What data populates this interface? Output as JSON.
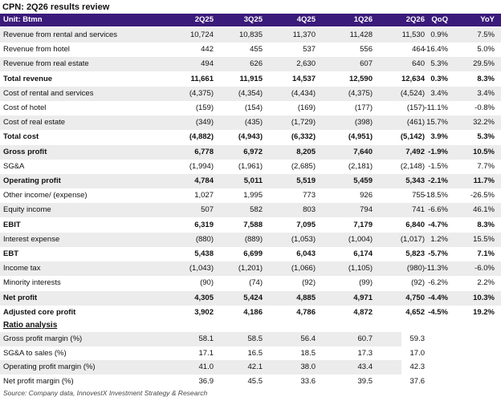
{
  "title": "CPN: 2Q26 results review",
  "header": {
    "unit": "Unit: Btmn",
    "columns": [
      "2Q25",
      "3Q25",
      "4Q25",
      "1Q26",
      "2Q26",
      "QoQ",
      "YoY"
    ]
  },
  "rows": [
    {
      "label": "Revenue from rental and services",
      "values": [
        "10,724",
        "10,835",
        "11,370",
        "11,428",
        "11,530",
        "0.9%",
        "7.5%"
      ],
      "bold": false
    },
    {
      "label": "Revenue from hotel",
      "values": [
        "442",
        "455",
        "537",
        "556",
        "464",
        "-16.4%",
        "5.0%"
      ],
      "bold": false
    },
    {
      "label": "Revenue from real estate",
      "values": [
        "494",
        "626",
        "2,630",
        "607",
        "640",
        "5.3%",
        "29.5%"
      ],
      "bold": false
    },
    {
      "label": "Total revenue",
      "values": [
        "11,661",
        "11,915",
        "14,537",
        "12,590",
        "12,634",
        "0.3%",
        "8.3%"
      ],
      "bold": true
    },
    {
      "label": "Cost of rental and services",
      "values": [
        "(4,375)",
        "(4,354)",
        "(4,434)",
        "(4,375)",
        "(4,524)",
        "3.4%",
        "3.4%"
      ],
      "bold": false
    },
    {
      "label": "Cost of hotel",
      "values": [
        "(159)",
        "(154)",
        "(169)",
        "(177)",
        "(157)",
        "-11.1%",
        "-0.8%"
      ],
      "bold": false
    },
    {
      "label": "Cost of real estate",
      "values": [
        "(349)",
        "(435)",
        "(1,729)",
        "(398)",
        "(461)",
        "15.7%",
        "32.2%"
      ],
      "bold": false
    },
    {
      "label": "Total cost",
      "values": [
        "(4,882)",
        "(4,943)",
        "(6,332)",
        "(4,951)",
        "(5,142)",
        "3.9%",
        "5.3%"
      ],
      "bold": true
    },
    {
      "label": "Gross profit",
      "values": [
        "6,778",
        "6,972",
        "8,205",
        "7,640",
        "7,492",
        "-1.9%",
        "10.5%"
      ],
      "bold": true
    },
    {
      "label": "SG&A",
      "values": [
        "(1,994)",
        "(1,961)",
        "(2,685)",
        "(2,181)",
        "(2,148)",
        "-1.5%",
        "7.7%"
      ],
      "bold": false
    },
    {
      "label": "Operating profit",
      "values": [
        "4,784",
        "5,011",
        "5,519",
        "5,459",
        "5,343",
        "-2.1%",
        "11.7%"
      ],
      "bold": true
    },
    {
      "label": "Other income/ (expense)",
      "values": [
        "1,027",
        "1,995",
        "773",
        "926",
        "755",
        "-18.5%",
        "-26.5%"
      ],
      "bold": false
    },
    {
      "label": "Equity income",
      "values": [
        "507",
        "582",
        "803",
        "794",
        "741",
        "-6.6%",
        "46.1%"
      ],
      "bold": false
    },
    {
      "label": "EBIT",
      "values": [
        "6,319",
        "7,588",
        "7,095",
        "7,179",
        "6,840",
        "-4.7%",
        "8.3%"
      ],
      "bold": true
    },
    {
      "label": "Interest expense",
      "values": [
        "(880)",
        "(889)",
        "(1,053)",
        "(1,004)",
        "(1,017)",
        "1.2%",
        "15.5%"
      ],
      "bold": false
    },
    {
      "label": "EBT",
      "values": [
        "5,438",
        "6,699",
        "6,043",
        "6,174",
        "5,823",
        "-5.7%",
        "7.1%"
      ],
      "bold": true
    },
    {
      "label": "Income tax",
      "values": [
        "(1,043)",
        "(1,201)",
        "(1,066)",
        "(1,105)",
        "(980)",
        "-11.3%",
        "-6.0%"
      ],
      "bold": false
    },
    {
      "label": "Minority interests",
      "values": [
        "(90)",
        "(74)",
        "(92)",
        "(99)",
        "(92)",
        "-6.2%",
        "2.2%"
      ],
      "bold": false
    },
    {
      "label": "Net profit",
      "values": [
        "4,305",
        "5,424",
        "4,885",
        "4,971",
        "4,750",
        "-4.4%",
        "10.3%"
      ],
      "bold": true
    },
    {
      "label": "Adjusted core profit",
      "values": [
        "3,902",
        "4,186",
        "4,786",
        "4,872",
        "4,652",
        "-4.5%",
        "19.2%"
      ],
      "bold": true
    }
  ],
  "ratio": {
    "title": "Ratio analysis",
    "rows": [
      {
        "label": "Gross profit margin (%)",
        "values": [
          "58.1",
          "58.5",
          "56.4",
          "60.7",
          "59.3"
        ]
      },
      {
        "label": "SG&A to sales (%)",
        "values": [
          "17.1",
          "16.5",
          "18.5",
          "17.3",
          "17.0"
        ]
      },
      {
        "label": "Operating profit margin (%)",
        "values": [
          "41.0",
          "42.1",
          "38.0",
          "43.4",
          "42.3"
        ]
      },
      {
        "label": "Net profit margin (%)",
        "values": [
          "36.9",
          "45.5",
          "33.6",
          "39.5",
          "37.6"
        ]
      }
    ]
  },
  "source": "Source: Company data, InnovestX Investment Strategy & Research"
}
